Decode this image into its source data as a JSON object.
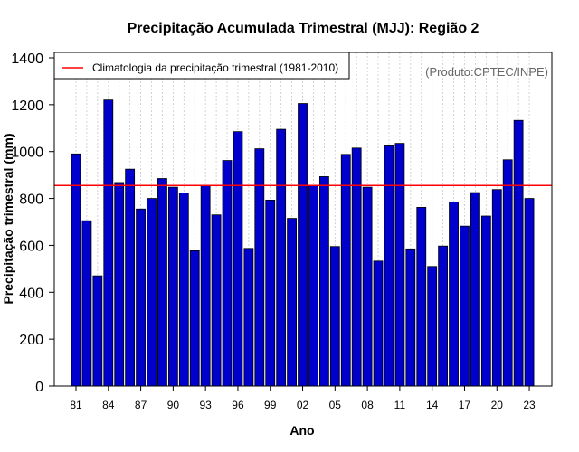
{
  "chart_data": {
    "type": "bar",
    "title": "Precipitação Acumulada Trimestral (MJJ): Região 2",
    "xlabel": "Ano",
    "ylabel": "Precipitação trimestral (mm)",
    "ylim": [
      0,
      1400
    ],
    "yticks": [
      0,
      200,
      400,
      600,
      800,
      1000,
      1200,
      1400
    ],
    "categories": [
      "1981",
      "1982",
      "1983",
      "1984",
      "1985",
      "1986",
      "1987",
      "1988",
      "1989",
      "1990",
      "1991",
      "1992",
      "1993",
      "1994",
      "1995",
      "1996",
      "1997",
      "1998",
      "1999",
      "2000",
      "2001",
      "2002",
      "2003",
      "2004",
      "2005",
      "2006",
      "2007",
      "2008",
      "2009",
      "2010",
      "2011",
      "2012",
      "2013",
      "2014",
      "2015",
      "2016",
      "2017",
      "2018",
      "2019",
      "2020",
      "2021",
      "2022",
      "2023"
    ],
    "xtick_labels": [
      "81",
      "84",
      "87",
      "90",
      "93",
      "96",
      "99",
      "02",
      "05",
      "08",
      "11",
      "14",
      "17",
      "20",
      "23"
    ],
    "values": [
      990,
      705,
      470,
      1220,
      868,
      925,
      755,
      800,
      885,
      848,
      823,
      577,
      855,
      730,
      962,
      1085,
      587,
      1012,
      793,
      1095,
      715,
      1205,
      855,
      893,
      595,
      988,
      1015,
      848,
      533,
      1028,
      1035,
      585,
      762,
      510,
      597,
      785,
      682,
      825,
      725,
      838,
      965,
      1133,
      800
    ],
    "reference_line": {
      "label": "Climatologia da precipitação trimestral (1981-2010)",
      "value": 855,
      "color": "#ff0000"
    },
    "bar_color": "#0000cd",
    "grid": "vertical dotted",
    "legend_position": "top-left",
    "credit": "(Produto:CPTEC/INPE)"
  }
}
